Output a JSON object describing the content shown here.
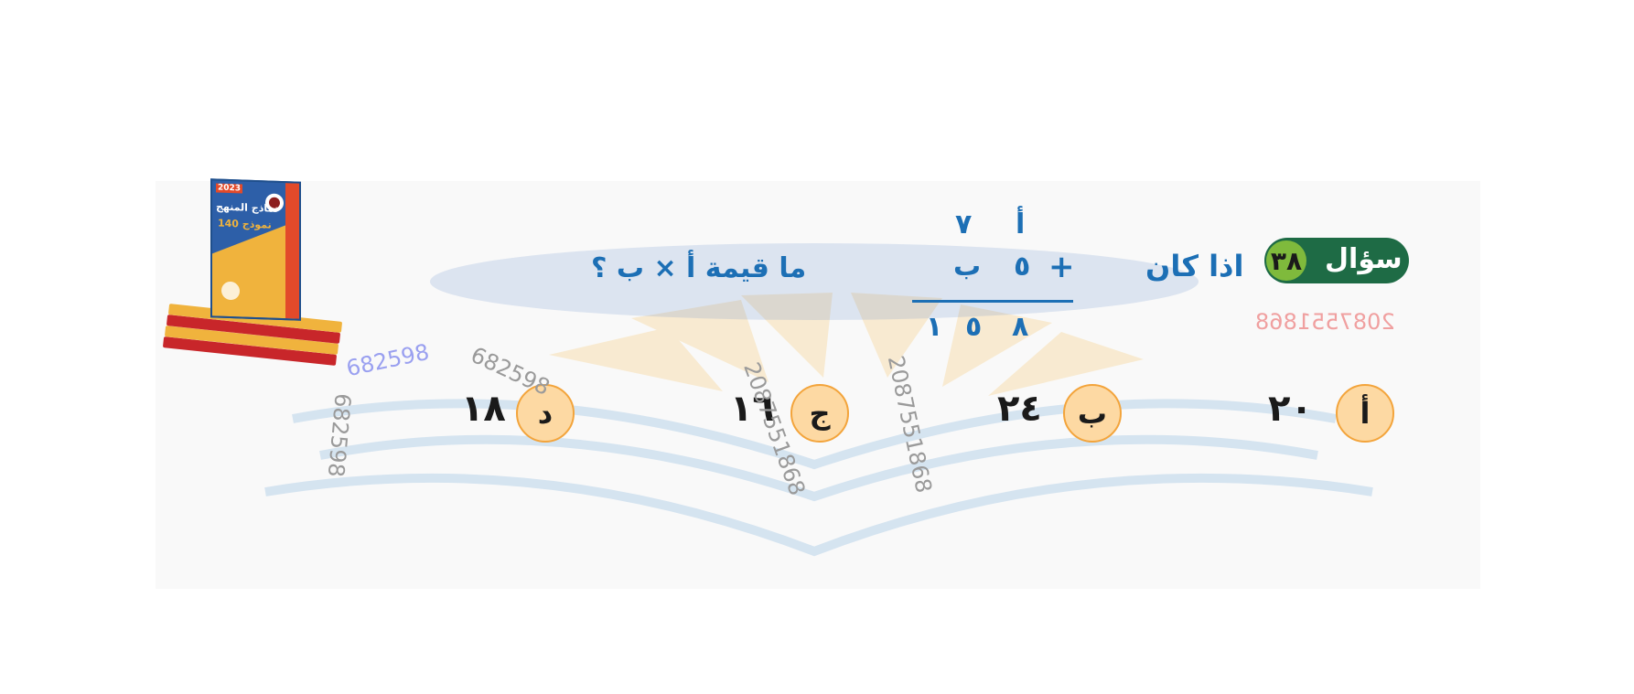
{
  "question": {
    "label": "سؤال",
    "number": "٣٨",
    "intro": "اذا كان",
    "prompt": "ما قيمة أ × ب ؟"
  },
  "equation": {
    "row1": [
      "أ",
      "٧"
    ],
    "operator": "+",
    "row2": [
      "ب",
      "٥"
    ],
    "result": [
      "٨",
      "٥",
      "١"
    ]
  },
  "choices": [
    {
      "letter": "أ",
      "value": "٢٠"
    },
    {
      "letter": "ب",
      "value": "٢٤"
    },
    {
      "letter": "ج",
      "value": "١٦"
    },
    {
      "letter": "د",
      "value": "١٨"
    }
  ],
  "watermarks": {
    "code_long": "208755186‌8",
    "code_short": "682598"
  },
  "book": {
    "title": "نماذج المنهج",
    "count": "140 نموذج",
    "year": "2023"
  },
  "colors": {
    "question_text": "#1c6fb5",
    "badge_bg": "#1e6b45",
    "badge_number_bg": "#7fba3c",
    "choice_circle": "#fdd9a3",
    "choice_border": "#f3a43b"
  }
}
